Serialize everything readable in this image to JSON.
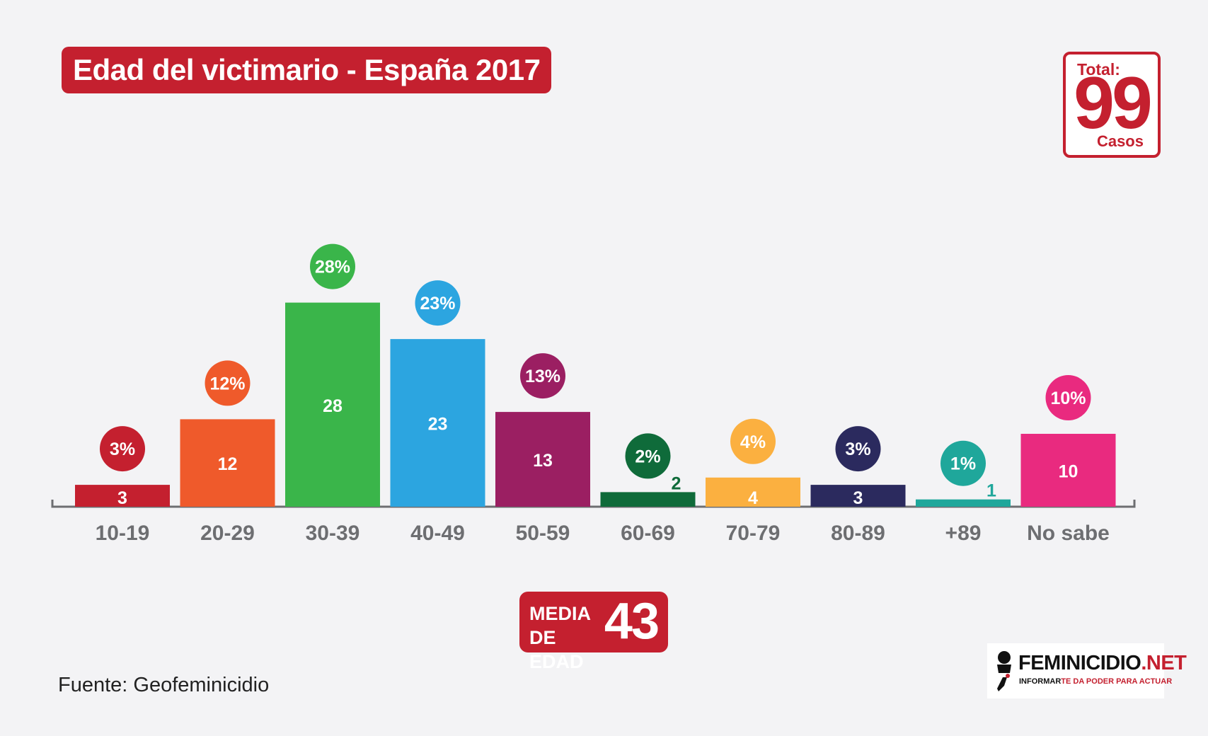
{
  "header": {
    "title": "Edad del victimario - España 2017"
  },
  "total": {
    "label": "Total:",
    "value": "99",
    "unit": "Casos"
  },
  "chart_data": {
    "type": "bar",
    "title": "Edad del victimario - España 2017",
    "categories": [
      "10-19",
      "20-29",
      "30-39",
      "40-49",
      "50-59",
      "60-69",
      "70-79",
      "80-89",
      "+89",
      "No sabe"
    ],
    "values": [
      3,
      12,
      28,
      23,
      13,
      2,
      4,
      3,
      1,
      10
    ],
    "percent_labels": [
      "3%",
      "12%",
      "28%",
      "23%",
      "13%",
      "2%",
      "4%",
      "3%",
      "1%",
      "10%"
    ],
    "colors": [
      "#c4202f",
      "#ef5a2b",
      "#3ab54a",
      "#2ca5e0",
      "#9b1f62",
      "#0f6b3a",
      "#fbb040",
      "#2b2a5e",
      "#1fa79b",
      "#e92a7f"
    ],
    "ylim": [
      0,
      30
    ],
    "grid": false,
    "legend": "none"
  },
  "summary": {
    "media_label": "MEDIA\nDE EDAD",
    "media_value": "43"
  },
  "source": {
    "text": "Fuente: Geofeminicidio"
  },
  "logo": {
    "name_main": "FEMINICIDIO",
    "name_suffix": ".NET",
    "tagline_a": "INFORMAR",
    "tagline_b": "TE DA PODER PARA ACTUAR"
  }
}
